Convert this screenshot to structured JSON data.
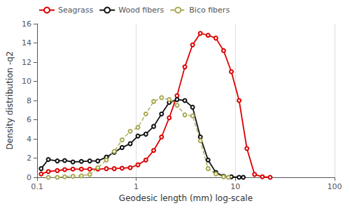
{
  "chart_data": {
    "type": "line",
    "xlabel": "Geodesic length (mm) log-scale",
    "ylabel": "Density distribution -q2",
    "log": "x",
    "grid": "x",
    "legend": "upper left",
    "xlim": [
      0.1,
      100
    ],
    "xticks": [
      0.1,
      1,
      10,
      100
    ],
    "ylim": [
      0,
      16
    ],
    "yticks": [
      0,
      2,
      4,
      6,
      8,
      10,
      12,
      14,
      16
    ],
    "series": [
      {
        "name": "Seagrass",
        "color": "#dd0000",
        "marker": "circle",
        "line_style": "solid",
        "x": [
          0.11,
          0.13,
          0.16,
          0.19,
          0.23,
          0.28,
          0.34,
          0.41,
          0.5,
          0.6,
          0.72,
          0.87,
          1.04,
          1.25,
          1.5,
          1.8,
          2.15,
          2.58,
          3.09,
          3.7,
          4.43,
          5.3,
          6.35,
          7.6,
          9.1,
          10.9,
          13.05,
          15.6,
          18.7,
          22.4
        ],
        "values": [
          0.35,
          0.6,
          0.7,
          0.8,
          0.85,
          0.85,
          0.85,
          0.85,
          0.9,
          0.9,
          0.95,
          1.0,
          1.3,
          1.8,
          2.8,
          4.2,
          6.2,
          8.5,
          11.5,
          13.8,
          15.0,
          14.8,
          14.5,
          13.2,
          11.0,
          8.0,
          3.0,
          0.3,
          0.05,
          0.0
        ]
      },
      {
        "name": "Wood fibers",
        "color": "#111111",
        "marker": "circle",
        "line_style": "solid",
        "x": [
          0.11,
          0.13,
          0.16,
          0.19,
          0.23,
          0.28,
          0.34,
          0.41,
          0.5,
          0.6,
          0.72,
          0.87,
          1.04,
          1.25,
          1.5,
          1.8,
          2.15,
          2.58,
          3.09,
          3.7,
          4.43,
          5.3,
          6.35,
          7.6,
          9.1,
          10.9,
          12.0
        ],
        "values": [
          0.9,
          1.85,
          1.7,
          1.75,
          1.6,
          1.65,
          1.7,
          1.7,
          2.1,
          2.6,
          3.1,
          3.5,
          4.3,
          4.5,
          5.3,
          6.6,
          7.8,
          8.1,
          8.0,
          7.3,
          4.2,
          1.8,
          0.5,
          0.1,
          0.05,
          0.0,
          0.0
        ]
      },
      {
        "name": "Bico fibers",
        "color": "#aaaa55",
        "marker": "circle",
        "line_style": "dashed",
        "x": [
          0.13,
          0.16,
          0.19,
          0.23,
          0.28,
          0.34,
          0.41,
          0.5,
          0.6,
          0.72,
          0.87,
          1.04,
          1.25,
          1.5,
          1.8,
          2.15,
          2.58,
          3.09,
          3.7,
          4.43,
          5.3,
          6.35,
          7.6,
          8.5
        ],
        "values": [
          0.0,
          0.0,
          0.05,
          0.1,
          0.15,
          0.3,
          1.0,
          1.8,
          2.7,
          3.9,
          4.8,
          5.2,
          6.6,
          7.9,
          8.3,
          8.1,
          7.5,
          6.5,
          6.4,
          3.8,
          0.9,
          0.35,
          0.05,
          0.0
        ]
      }
    ]
  }
}
